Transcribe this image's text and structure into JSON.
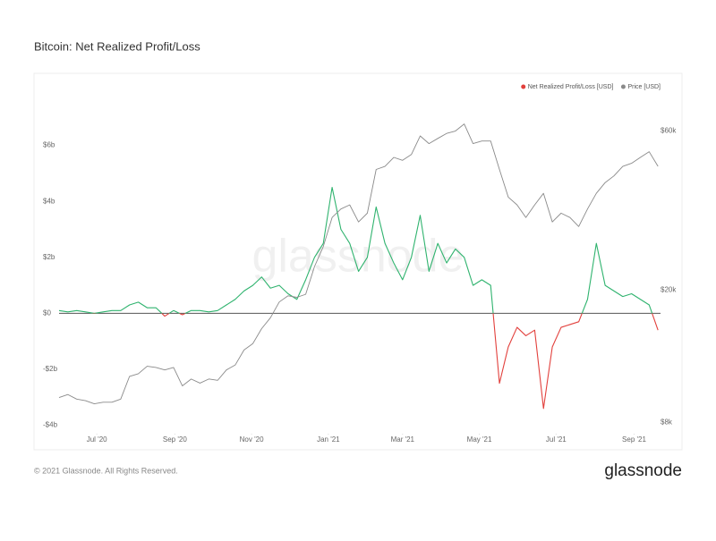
{
  "chart_data": {
    "type": "line",
    "title": "Bitcoin: Net Realized Profit/Loss",
    "watermark": "glassnode",
    "legend": "top-right",
    "grid": false,
    "x": [
      "2020-06-01",
      "2020-06-08",
      "2020-06-15",
      "2020-06-22",
      "2020-06-29",
      "2020-07-06",
      "2020-07-13",
      "2020-07-20",
      "2020-07-27",
      "2020-08-03",
      "2020-08-10",
      "2020-08-17",
      "2020-08-24",
      "2020-08-31",
      "2020-09-07",
      "2020-09-14",
      "2020-09-21",
      "2020-09-28",
      "2020-10-05",
      "2020-10-12",
      "2020-10-19",
      "2020-10-26",
      "2020-11-02",
      "2020-11-09",
      "2020-11-16",
      "2020-11-23",
      "2020-11-30",
      "2020-12-07",
      "2020-12-14",
      "2020-12-21",
      "2020-12-28",
      "2021-01-04",
      "2021-01-11",
      "2021-01-18",
      "2021-01-25",
      "2021-02-01",
      "2021-02-08",
      "2021-02-15",
      "2021-02-22",
      "2021-03-01",
      "2021-03-08",
      "2021-03-15",
      "2021-03-22",
      "2021-03-29",
      "2021-04-05",
      "2021-04-12",
      "2021-04-19",
      "2021-04-26",
      "2021-05-03",
      "2021-05-10",
      "2021-05-17",
      "2021-05-24",
      "2021-05-31",
      "2021-06-07",
      "2021-06-14",
      "2021-06-21",
      "2021-06-28",
      "2021-07-05",
      "2021-07-12",
      "2021-07-19",
      "2021-07-26",
      "2021-08-02",
      "2021-08-09",
      "2021-08-16",
      "2021-08-23",
      "2021-08-30",
      "2021-09-06",
      "2021-09-13",
      "2021-09-20"
    ],
    "xlim": [
      "2020-06-01",
      "2021-09-22"
    ],
    "xticks": [
      {
        "value": "2020-07-01",
        "label": "Jul '20"
      },
      {
        "value": "2020-09-01",
        "label": "Sep '20"
      },
      {
        "value": "2020-11-01",
        "label": "Nov '20"
      },
      {
        "value": "2021-01-01",
        "label": "Jan '21"
      },
      {
        "value": "2021-03-01",
        "label": "Mar '21"
      },
      {
        "value": "2021-05-01",
        "label": "May '21"
      },
      {
        "value": "2021-07-01",
        "label": "Jul '21"
      },
      {
        "value": "2021-09-01",
        "label": "Sep '21"
      }
    ],
    "ylim": [
      -4.3,
      8
    ],
    "yticks": [
      {
        "value": -4,
        "label": "-$4b"
      },
      {
        "value": -2,
        "label": "-$2b"
      },
      {
        "value": 0,
        "label": "$0"
      },
      {
        "value": 2,
        "label": "$2b"
      },
      {
        "value": 4,
        "label": "$4b"
      },
      {
        "value": 6,
        "label": "$6b"
      }
    ],
    "y2lim": [
      7400,
      80000
    ],
    "y2scale": "log",
    "y2ticks": [
      {
        "value": 8000,
        "label": "$8k"
      },
      {
        "value": 20000,
        "label": "$20k"
      },
      {
        "value": 60000,
        "label": "$60k"
      }
    ],
    "series": [
      {
        "name": "Net Realized Profit/Loss [USD]",
        "color": "#2fb36e",
        "negative_color": "#e2403c",
        "legend_color": "#e2403c",
        "values": [
          0.1,
          0.05,
          0.1,
          0.05,
          0.0,
          0.05,
          0.1,
          0.1,
          0.3,
          0.4,
          0.2,
          0.2,
          -0.1,
          0.1,
          -0.05,
          0.1,
          0.1,
          0.05,
          0.1,
          0.3,
          0.5,
          0.8,
          1.0,
          1.3,
          0.9,
          1.0,
          0.7,
          0.5,
          1.2,
          2.0,
          2.5,
          4.5,
          3.0,
          2.5,
          1.5,
          2.0,
          3.8,
          2.5,
          1.8,
          1.2,
          2.0,
          3.5,
          1.5,
          2.5,
          1.8,
          2.3,
          2.0,
          1.0,
          1.2,
          1.0,
          -2.5,
          -1.2,
          -0.5,
          -0.8,
          -0.6,
          -3.4,
          -1.2,
          -0.5,
          -0.4,
          -0.3,
          0.5,
          2.5,
          1.0,
          0.8,
          0.6,
          0.7,
          0.5,
          0.3,
          -0.6
        ]
      },
      {
        "name": "Price [USD]",
        "color": "#8a8a8a",
        "axis": "y2",
        "values": [
          9500,
          9700,
          9400,
          9300,
          9100,
          9200,
          9200,
          9400,
          11000,
          11200,
          11800,
          11700,
          11500,
          11700,
          10300,
          10800,
          10500,
          10800,
          10700,
          11500,
          11900,
          13200,
          13800,
          15300,
          16500,
          18400,
          19200,
          19000,
          19400,
          23500,
          27000,
          33000,
          35000,
          36000,
          32000,
          34000,
          46000,
          47000,
          50000,
          49000,
          51000,
          58000,
          55000,
          57000,
          59000,
          60000,
          63000,
          55000,
          56000,
          56000,
          46000,
          38000,
          36000,
          33000,
          36000,
          39000,
          32000,
          34000,
          33000,
          31000,
          35000,
          39000,
          42000,
          44000,
          47000,
          48000,
          50000,
          52000,
          47000
        ]
      }
    ]
  },
  "footer": {
    "copyright": "© 2021 Glassnode. All Rights Reserved.",
    "brand": "glassnode"
  }
}
